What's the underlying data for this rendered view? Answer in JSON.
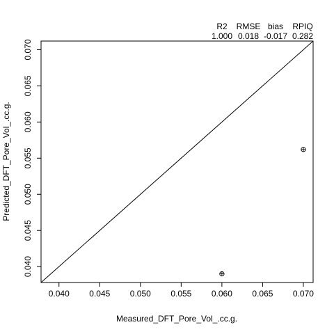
{
  "chart_data": {
    "type": "scatter",
    "xlabel": "Measured_DFT_Pore_Vol_.cc.g.",
    "ylabel": "Predicted_DFT_Pore_Vol_.cc.g.",
    "xlim": [
      0.0378,
      0.0712
    ],
    "ylim": [
      0.0378,
      0.0712
    ],
    "x_ticks": [
      "0.040",
      "0.045",
      "0.050",
      "0.055",
      "0.060",
      "0.065",
      "0.070"
    ],
    "y_ticks": [
      "0.040",
      "0.045",
      "0.050",
      "0.055",
      "0.060",
      "0.065",
      "0.070"
    ],
    "points": [
      {
        "x": 0.06,
        "y": 0.039
      },
      {
        "x": 0.07,
        "y": 0.0562
      }
    ],
    "reference_line": "1:1",
    "marker": "circled-plus",
    "stats": {
      "headers": [
        "R2",
        "RMSE",
        "bias",
        "RPIQ"
      ],
      "values": [
        "1.000",
        "0.018",
        "-0.017",
        "0.282"
      ]
    },
    "grid": false,
    "legend": "none"
  }
}
